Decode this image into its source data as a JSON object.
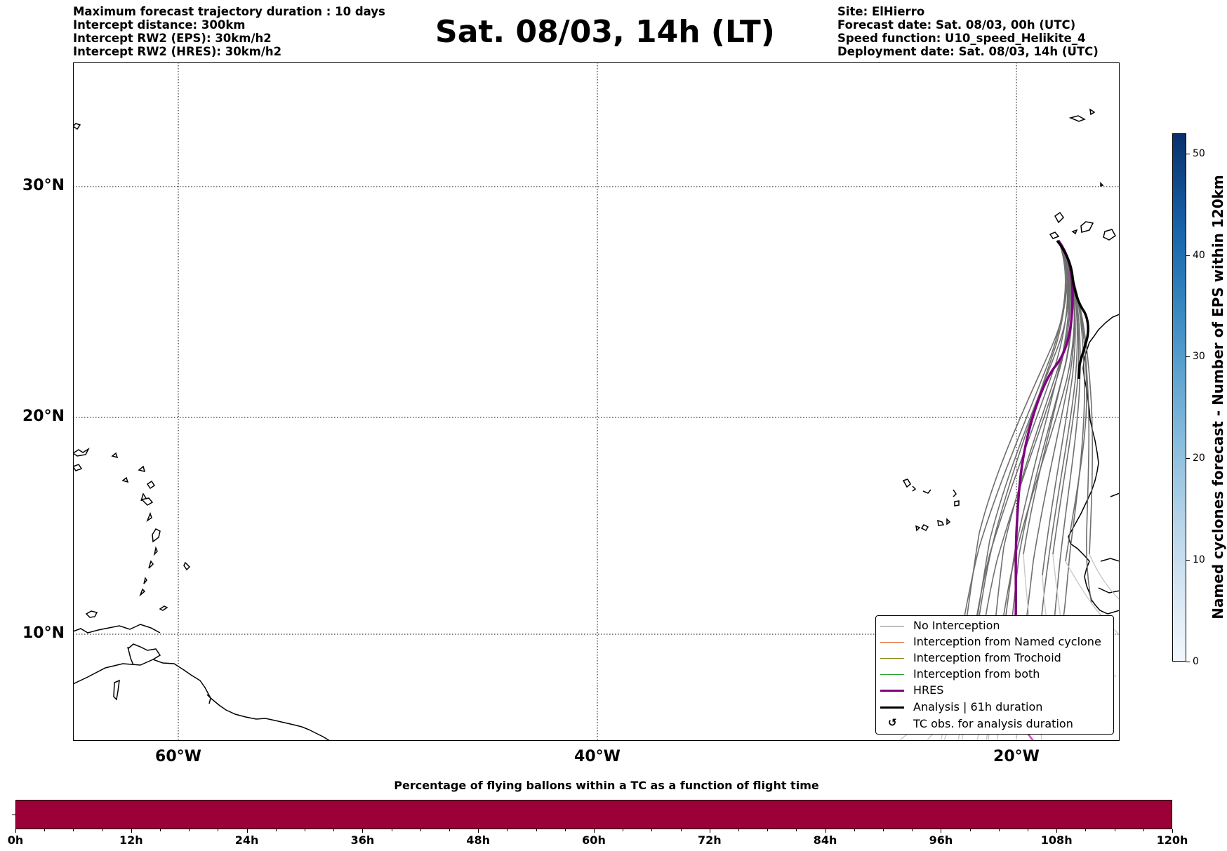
{
  "header_left": [
    "Maximum forecast trajectory duration : 10 days",
    "Intercept distance: 300km",
    "Intercept RW2 (EPS):  30km/h2",
    "Intercept RW2 (HRES): 30km/h2"
  ],
  "title": "Sat. 08/03, 14h (LT)",
  "header_right": [
    "Site: ElHierro",
    "Forecast date: Sat. 08/03, 00h (UTC)",
    "Speed function: U10_speed_Helikite_4",
    "Deployment date: Sat. 08/03, 14h (UTC)"
  ],
  "map": {
    "lat_labels": [
      "30°N",
      "20°N",
      "10°N"
    ],
    "lon_labels": [
      "60°W",
      "40°W",
      "20°W"
    ],
    "grid": "dotted"
  },
  "legend": {
    "placement": "bottom-right",
    "items": [
      {
        "label": "No Interception",
        "color": "#808080"
      },
      {
        "label": "Interception from Named cyclone",
        "color": "#e8622a"
      },
      {
        "label": "Interception from Trochoid",
        "color": "#8a8a1a"
      },
      {
        "label": "Interception from both",
        "color": "#2ca02c"
      },
      {
        "label": "HRES",
        "color": "#800080"
      },
      {
        "label": "Analysis | 61h duration",
        "color": "#000000"
      },
      {
        "label": "TC obs. for analysis duration",
        "color": "#000000"
      }
    ]
  },
  "colorbar_vertical": {
    "label": "Named cyclones forecast - Number of EPS within 120km",
    "ticks": [
      "0",
      "10",
      "20",
      "30",
      "40",
      "50"
    ]
  },
  "colorbar_horizontal": {
    "title": "Percentage of flying ballons within a TC as a function of flight time",
    "ticks": [
      "0h",
      "12h",
      "24h",
      "36h",
      "48h",
      "60h",
      "72h",
      "84h",
      "96h",
      "108h",
      "120h"
    ],
    "fill_color": "#9b0039"
  }
}
